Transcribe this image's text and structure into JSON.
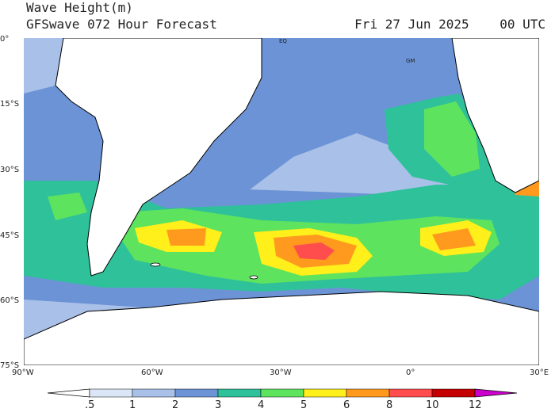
{
  "header": {
    "title": "Wave Height(m)",
    "subtitle_left": "GFSwave 072 Hour Forecast",
    "subtitle_right": "Fri 27 Jun 2025    00 UTC"
  },
  "map": {
    "region": "South Atlantic Ocean",
    "lat_labels": [
      "0°",
      "15°S",
      "30°S",
      "45°S",
      "60°S",
      "75°S"
    ],
    "lon_labels": [
      "90°W",
      "60°W",
      "30°W",
      "0°",
      "30°E"
    ],
    "annotations": [
      "EQ",
      "GM"
    ],
    "max_region_value": "8-10 m",
    "colors": {
      "land": "#ffffff",
      "coast": "#000000"
    }
  },
  "legend": {
    "levels": [
      ".5",
      "1",
      "2",
      "3",
      "4",
      "5",
      "6",
      "8",
      "10",
      "12"
    ],
    "colors": [
      "#ffffff",
      "#dbe7f7",
      "#a9c0e8",
      "#6b93d6",
      "#2fc19a",
      "#5ee35e",
      "#ffef1a",
      "#ff9a1f",
      "#ff4d4d",
      "#c40000",
      "#cc00cc"
    ]
  }
}
